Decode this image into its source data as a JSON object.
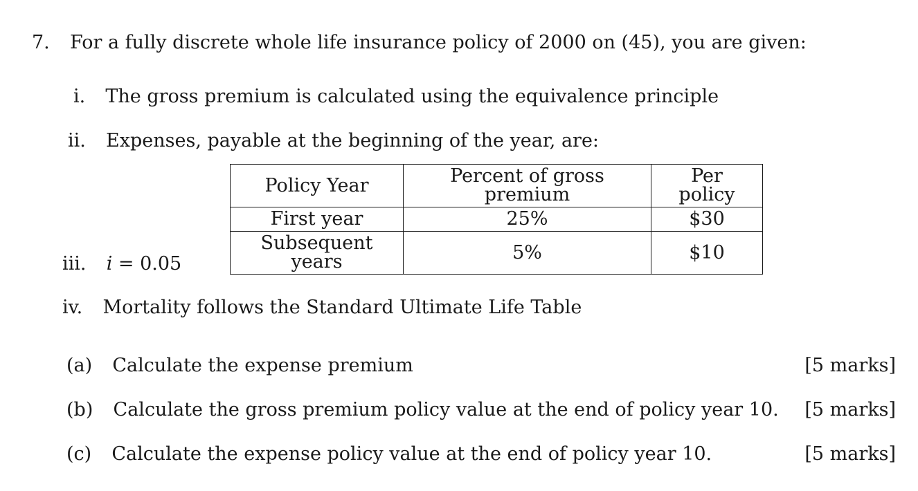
{
  "question": {
    "number": "7.",
    "stem": "For a fully discrete whole life insurance policy of 2000 on (45), you are given:"
  },
  "conditions": [
    {
      "label": "i.",
      "text": "The gross premium is calculated using the equivalence principle"
    },
    {
      "label": "ii.",
      "text": "Expenses, payable at the beginning of the year, are:"
    },
    {
      "label": "iii.",
      "var": "i",
      "eq": " = 0.05"
    },
    {
      "label": "iv.",
      "text": "Mortality follows the Standard Ultimate Life Table"
    }
  ],
  "expense_table": {
    "headers": [
      "Policy Year",
      "Percent of gross premium",
      "Per policy"
    ],
    "rows": [
      [
        "First year",
        "25%",
        "$30"
      ],
      [
        "Subsequent years",
        "5%",
        "$10"
      ]
    ]
  },
  "parts": [
    {
      "label": "(a)",
      "text": "Calculate the expense premium",
      "marks": "[5 marks]"
    },
    {
      "label": "(b)",
      "text": "Calculate the gross premium policy value at the end of policy year 10.",
      "marks": "[5 marks]"
    },
    {
      "label": "(c)",
      "text": "Calculate the expense policy value at the end of policy year 10.",
      "marks": "[5 marks]"
    }
  ]
}
